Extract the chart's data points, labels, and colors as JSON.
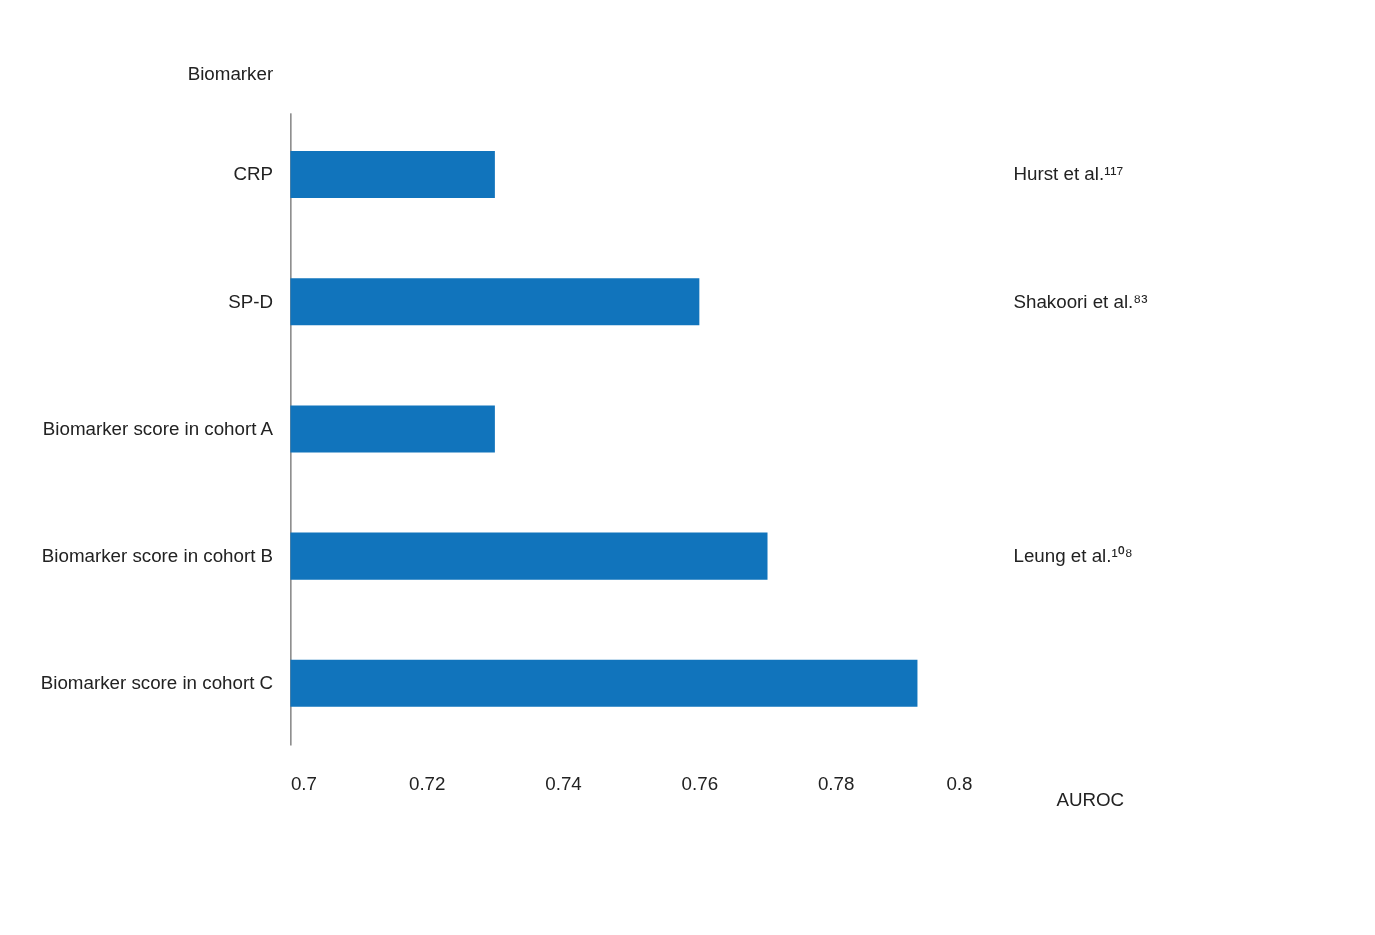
{
  "chart_data": {
    "type": "bar",
    "orientation": "horizontal",
    "ylabel": "Biomarker",
    "xlabel": "AUROC",
    "categories": [
      "CRP",
      "SP-D",
      "Biomarker score in cohort A",
      "Biomarker score in cohort B",
      "Biomarker score in cohort C"
    ],
    "values": [
      0.73,
      0.76,
      0.73,
      0.77,
      0.792
    ],
    "color": "#1174bc",
    "xlim": [
      0.7,
      0.8
    ],
    "xticks": [
      0.7,
      0.72,
      0.74,
      0.76,
      0.78,
      0.8
    ],
    "grid": false,
    "annotations": [
      "Hurst et al.¹¹⁷",
      "Shakoori et al.⁸³",
      "Leung et al.¹⁰⁸"
    ]
  }
}
